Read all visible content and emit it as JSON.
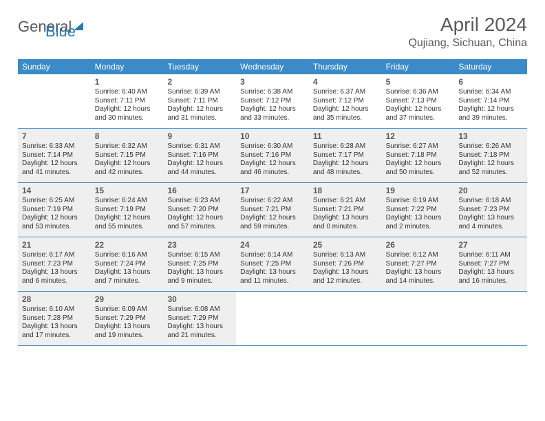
{
  "logo": {
    "gray": "General",
    "blue": "Blue"
  },
  "title": "April 2024",
  "location": "Qujiang, Sichuan, China",
  "colors": {
    "header_bg": "#3b8bc8",
    "header_text": "#ffffff",
    "border": "#3b8bc8",
    "shaded_bg": "#efefef",
    "text": "#333333",
    "daynum": "#5a5a5a",
    "logo_gray": "#5a5a5a",
    "logo_blue": "#2a7ab0"
  },
  "weekdays": [
    "Sunday",
    "Monday",
    "Tuesday",
    "Wednesday",
    "Thursday",
    "Friday",
    "Saturday"
  ],
  "grid": [
    [
      {
        "empty": true,
        "shaded": false
      },
      {
        "day": "1",
        "sunrise": "Sunrise: 6:40 AM",
        "sunset": "Sunset: 7:11 PM",
        "dl1": "Daylight: 12 hours",
        "dl2": "and 30 minutes.",
        "shaded": false
      },
      {
        "day": "2",
        "sunrise": "Sunrise: 6:39 AM",
        "sunset": "Sunset: 7:11 PM",
        "dl1": "Daylight: 12 hours",
        "dl2": "and 31 minutes.",
        "shaded": false
      },
      {
        "day": "3",
        "sunrise": "Sunrise: 6:38 AM",
        "sunset": "Sunset: 7:12 PM",
        "dl1": "Daylight: 12 hours",
        "dl2": "and 33 minutes.",
        "shaded": false
      },
      {
        "day": "4",
        "sunrise": "Sunrise: 6:37 AM",
        "sunset": "Sunset: 7:12 PM",
        "dl1": "Daylight: 12 hours",
        "dl2": "and 35 minutes.",
        "shaded": false
      },
      {
        "day": "5",
        "sunrise": "Sunrise: 6:36 AM",
        "sunset": "Sunset: 7:13 PM",
        "dl1": "Daylight: 12 hours",
        "dl2": "and 37 minutes.",
        "shaded": false
      },
      {
        "day": "6",
        "sunrise": "Sunrise: 6:34 AM",
        "sunset": "Sunset: 7:14 PM",
        "dl1": "Daylight: 12 hours",
        "dl2": "and 39 minutes.",
        "shaded": false
      }
    ],
    [
      {
        "day": "7",
        "sunrise": "Sunrise: 6:33 AM",
        "sunset": "Sunset: 7:14 PM",
        "dl1": "Daylight: 12 hours",
        "dl2": "and 41 minutes.",
        "shaded": true
      },
      {
        "day": "8",
        "sunrise": "Sunrise: 6:32 AM",
        "sunset": "Sunset: 7:15 PM",
        "dl1": "Daylight: 12 hours",
        "dl2": "and 42 minutes.",
        "shaded": true
      },
      {
        "day": "9",
        "sunrise": "Sunrise: 6:31 AM",
        "sunset": "Sunset: 7:16 PM",
        "dl1": "Daylight: 12 hours",
        "dl2": "and 44 minutes.",
        "shaded": true
      },
      {
        "day": "10",
        "sunrise": "Sunrise: 6:30 AM",
        "sunset": "Sunset: 7:16 PM",
        "dl1": "Daylight: 12 hours",
        "dl2": "and 46 minutes.",
        "shaded": true
      },
      {
        "day": "11",
        "sunrise": "Sunrise: 6:28 AM",
        "sunset": "Sunset: 7:17 PM",
        "dl1": "Daylight: 12 hours",
        "dl2": "and 48 minutes.",
        "shaded": true
      },
      {
        "day": "12",
        "sunrise": "Sunrise: 6:27 AM",
        "sunset": "Sunset: 7:18 PM",
        "dl1": "Daylight: 12 hours",
        "dl2": "and 50 minutes.",
        "shaded": true
      },
      {
        "day": "13",
        "sunrise": "Sunrise: 6:26 AM",
        "sunset": "Sunset: 7:18 PM",
        "dl1": "Daylight: 12 hours",
        "dl2": "and 52 minutes.",
        "shaded": true
      }
    ],
    [
      {
        "day": "14",
        "sunrise": "Sunrise: 6:25 AM",
        "sunset": "Sunset: 7:19 PM",
        "dl1": "Daylight: 12 hours",
        "dl2": "and 53 minutes.",
        "shaded": true
      },
      {
        "day": "15",
        "sunrise": "Sunrise: 6:24 AM",
        "sunset": "Sunset: 7:19 PM",
        "dl1": "Daylight: 12 hours",
        "dl2": "and 55 minutes.",
        "shaded": true
      },
      {
        "day": "16",
        "sunrise": "Sunrise: 6:23 AM",
        "sunset": "Sunset: 7:20 PM",
        "dl1": "Daylight: 12 hours",
        "dl2": "and 57 minutes.",
        "shaded": true
      },
      {
        "day": "17",
        "sunrise": "Sunrise: 6:22 AM",
        "sunset": "Sunset: 7:21 PM",
        "dl1": "Daylight: 12 hours",
        "dl2": "and 59 minutes.",
        "shaded": true
      },
      {
        "day": "18",
        "sunrise": "Sunrise: 6:21 AM",
        "sunset": "Sunset: 7:21 PM",
        "dl1": "Daylight: 13 hours",
        "dl2": "and 0 minutes.",
        "shaded": true
      },
      {
        "day": "19",
        "sunrise": "Sunrise: 6:19 AM",
        "sunset": "Sunset: 7:22 PM",
        "dl1": "Daylight: 13 hours",
        "dl2": "and 2 minutes.",
        "shaded": true
      },
      {
        "day": "20",
        "sunrise": "Sunrise: 6:18 AM",
        "sunset": "Sunset: 7:23 PM",
        "dl1": "Daylight: 13 hours",
        "dl2": "and 4 minutes.",
        "shaded": true
      }
    ],
    [
      {
        "day": "21",
        "sunrise": "Sunrise: 6:17 AM",
        "sunset": "Sunset: 7:23 PM",
        "dl1": "Daylight: 13 hours",
        "dl2": "and 6 minutes.",
        "shaded": true
      },
      {
        "day": "22",
        "sunrise": "Sunrise: 6:16 AM",
        "sunset": "Sunset: 7:24 PM",
        "dl1": "Daylight: 13 hours",
        "dl2": "and 7 minutes.",
        "shaded": true
      },
      {
        "day": "23",
        "sunrise": "Sunrise: 6:15 AM",
        "sunset": "Sunset: 7:25 PM",
        "dl1": "Daylight: 13 hours",
        "dl2": "and 9 minutes.",
        "shaded": true
      },
      {
        "day": "24",
        "sunrise": "Sunrise: 6:14 AM",
        "sunset": "Sunset: 7:25 PM",
        "dl1": "Daylight: 13 hours",
        "dl2": "and 11 minutes.",
        "shaded": true
      },
      {
        "day": "25",
        "sunrise": "Sunrise: 6:13 AM",
        "sunset": "Sunset: 7:26 PM",
        "dl1": "Daylight: 13 hours",
        "dl2": "and 12 minutes.",
        "shaded": true
      },
      {
        "day": "26",
        "sunrise": "Sunrise: 6:12 AM",
        "sunset": "Sunset: 7:27 PM",
        "dl1": "Daylight: 13 hours",
        "dl2": "and 14 minutes.",
        "shaded": true
      },
      {
        "day": "27",
        "sunrise": "Sunrise: 6:11 AM",
        "sunset": "Sunset: 7:27 PM",
        "dl1": "Daylight: 13 hours",
        "dl2": "and 16 minutes.",
        "shaded": true
      }
    ],
    [
      {
        "day": "28",
        "sunrise": "Sunrise: 6:10 AM",
        "sunset": "Sunset: 7:28 PM",
        "dl1": "Daylight: 13 hours",
        "dl2": "and 17 minutes.",
        "shaded": true
      },
      {
        "day": "29",
        "sunrise": "Sunrise: 6:09 AM",
        "sunset": "Sunset: 7:29 PM",
        "dl1": "Daylight: 13 hours",
        "dl2": "and 19 minutes.",
        "shaded": true
      },
      {
        "day": "30",
        "sunrise": "Sunrise: 6:08 AM",
        "sunset": "Sunset: 7:29 PM",
        "dl1": "Daylight: 13 hours",
        "dl2": "and 21 minutes.",
        "shaded": true
      },
      {
        "empty": true,
        "shaded": false
      },
      {
        "empty": true,
        "shaded": false
      },
      {
        "empty": true,
        "shaded": false
      },
      {
        "empty": true,
        "shaded": false
      }
    ]
  ]
}
